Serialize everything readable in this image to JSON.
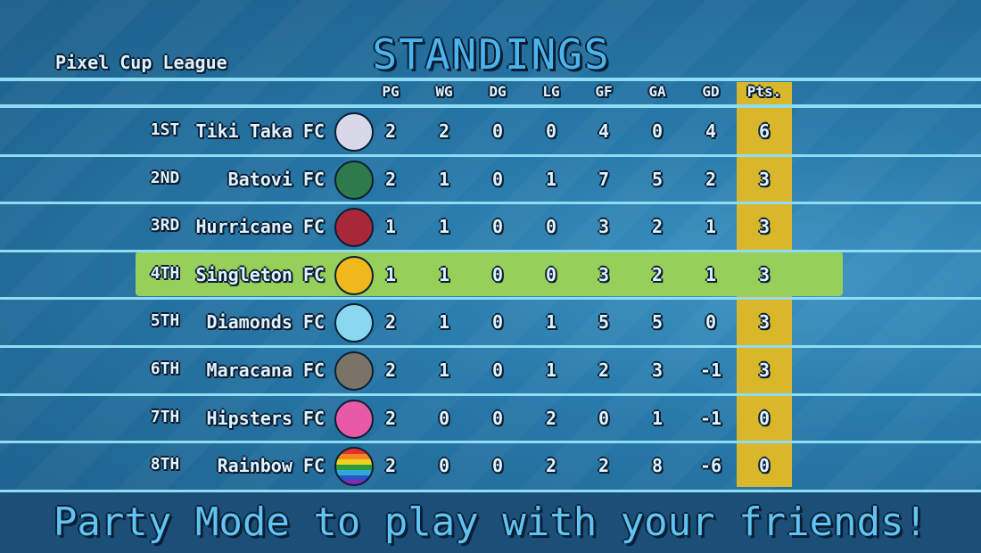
{
  "league": "Pixel Cup League",
  "title": "Standings",
  "headers": [
    "PG",
    "WG",
    "DG",
    "LG",
    "GF",
    "GA",
    "GD",
    "Pts."
  ],
  "highlight_row": 3,
  "colors": {
    "pts_column": "#d8b72a",
    "highlight": "#96d05a",
    "background": "#2778a8"
  },
  "rows": [
    {
      "rank": "1ST",
      "team": "Tiki Taka FC",
      "badge": "white-blue-ball",
      "badge_color": "#d8d8e8",
      "stats": [
        "2",
        "2",
        "0",
        "0",
        "4",
        "0",
        "4",
        "6"
      ]
    },
    {
      "rank": "2ND",
      "team": "Batovi FC",
      "badge": "green-lock-ball",
      "badge_color": "#2f7a4a",
      "stats": [
        "2",
        "1",
        "0",
        "1",
        "7",
        "5",
        "2",
        "3"
      ]
    },
    {
      "rank": "3RD",
      "team": "Hurricane FC",
      "badge": "red-swirl-ball",
      "badge_color": "#a8283a",
      "stats": [
        "1",
        "1",
        "0",
        "0",
        "3",
        "2",
        "1",
        "3"
      ]
    },
    {
      "rank": "4TH",
      "team": "Singleton FC",
      "badge": "yellow-eye-ball",
      "badge_color": "#f0b81c",
      "stats": [
        "1",
        "1",
        "0",
        "0",
        "3",
        "2",
        "1",
        "3"
      ]
    },
    {
      "rank": "5TH",
      "team": "Diamonds FC",
      "badge": "diamond-ball",
      "badge_color": "#8ad8f0",
      "stats": [
        "2",
        "1",
        "0",
        "1",
        "5",
        "5",
        "0",
        "3"
      ]
    },
    {
      "rank": "6TH",
      "team": "Maracana FC",
      "badge": "grey-ball",
      "badge_color": "#7a7468",
      "stats": [
        "2",
        "1",
        "0",
        "1",
        "2",
        "3",
        "-1",
        "3"
      ]
    },
    {
      "rank": "7TH",
      "team": "Hipsters FC",
      "badge": "pink-glasses-ball",
      "badge_color": "#e85aa8",
      "stats": [
        "2",
        "0",
        "0",
        "2",
        "0",
        "1",
        "-1",
        "0"
      ]
    },
    {
      "rank": "8TH",
      "team": "Rainbow FC",
      "badge": "rainbow-ball",
      "badge_color": "rainbow",
      "stats": [
        "2",
        "0",
        "0",
        "2",
        "2",
        "8",
        "-6",
        "0"
      ]
    }
  ],
  "banner": "Party Mode to play with your friends!"
}
